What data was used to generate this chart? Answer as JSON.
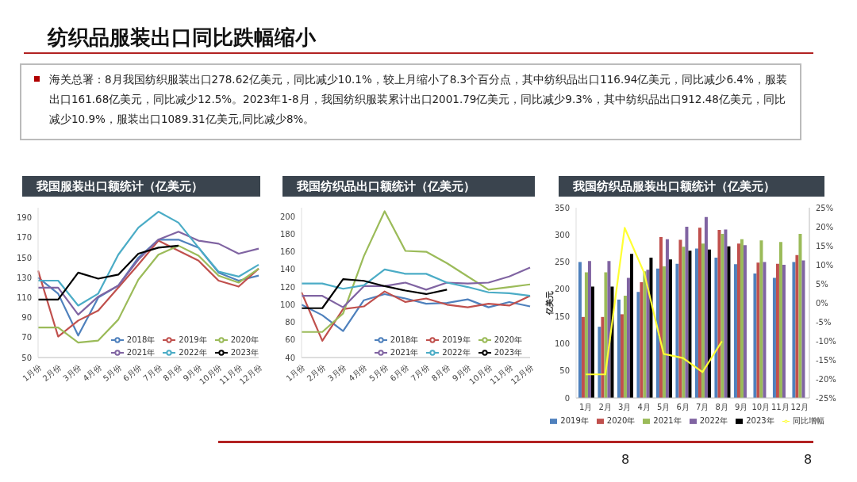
{
  "chart_data": [
    {
      "type": "other",
      "title": "纺织品服装出口同比跌幅缩小",
      "annotations": [
        "海关总署：8月我国纺织服装出口278.62亿美元，同比减少10.1%，较上月缩小了8.3个百分点，其中纺织品出口116.94亿美元，同比减少6.4%，服装出口161.68亿美元，同比减少12.5%。2023年1-8月，我国纺织服装累计出口2001.79亿美元，同比减少9.3%，其中纺织品出口912.48亿美元，同比减少10.9%，服装出口1089.31亿美元,同比减少8%。",
        "8",
        "8"
      ]
    },
    {
      "type": "line",
      "title": "我国服装出口额统计（亿美元）",
      "categories": [
        "1月份",
        "2月份",
        "3月份",
        "4月份",
        "5月份",
        "6月份",
        "7月份",
        "8月份",
        "9月份",
        "10月份",
        "11月份",
        "12月份"
      ],
      "ylim": [
        50,
        200
      ],
      "yticks": [
        50,
        70,
        90,
        110,
        130,
        150,
        170,
        190
      ],
      "legend": "bottom right",
      "series": [
        {
          "name": "2018年",
          "color": "#4f81bd",
          "values": [
            130,
            114,
            72,
            110,
            122,
            150,
            168,
            168,
            160,
            135,
            127,
            132
          ]
        },
        {
          "name": "2019年",
          "color": "#c0504d",
          "values": [
            137,
            71,
            87,
            97,
            120,
            143,
            167,
            157,
            147,
            127,
            121,
            139
          ]
        },
        {
          "name": "2020年",
          "color": "#9bbb59",
          "values": [
            80,
            80,
            65,
            67,
            88,
            128,
            153,
            162,
            152,
            132,
            125,
            139
          ]
        },
        {
          "name": "2021年",
          "color": "#8064a2",
          "values": [
            120,
            120,
            93,
            111,
            122,
            148,
            168,
            176,
            167,
            164,
            154,
            159
          ]
        },
        {
          "name": "2022年",
          "color": "#4bacc6",
          "values": [
            127,
            127,
            102,
            114,
            153,
            180,
            196,
            185,
            160,
            136,
            131,
            143
          ]
        },
        {
          "name": "2023年",
          "color": "#000000",
          "values": [
            108,
            108,
            135,
            129,
            133,
            154,
            160,
            162,
            null,
            null,
            null,
            null
          ]
        }
      ]
    },
    {
      "type": "line",
      "title": "我国纺织品出口额统计（亿美元）",
      "categories": [
        "1月份",
        "2月份",
        "3月份",
        "4月份",
        "5月份",
        "6月份",
        "7月份",
        "8月份",
        "9月份",
        "10月份",
        "11月份",
        "12月份"
      ],
      "ylim": [
        40,
        210
      ],
      "yticks": [
        40,
        60,
        80,
        100,
        120,
        140,
        160,
        180,
        200
      ],
      "legend": "bottom right",
      "series": [
        {
          "name": "2018年",
          "color": "#4f81bd",
          "values": [
            100,
            88,
            70,
            105,
            112,
            107,
            101,
            102,
            106,
            97,
            103,
            98
          ]
        },
        {
          "name": "2019年",
          "color": "#c0504d",
          "values": [
            114,
            59,
            95,
            98,
            115,
            103,
            107,
            100,
            97,
            101,
            99,
            110
          ]
        },
        {
          "name": "2020年",
          "color": "#9bbb59",
          "values": [
            69,
            69,
            90,
            155,
            206,
            161,
            160,
            147,
            132,
            117,
            120,
            123
          ]
        },
        {
          "name": "2021年",
          "color": "#8064a2",
          "values": [
            110,
            110,
            97,
            121,
            121,
            125,
            117,
            125,
            124,
            125,
            132,
            142
          ]
        },
        {
          "name": "2022年",
          "color": "#4bacc6",
          "values": [
            124,
            124,
            118,
            122,
            140,
            135,
            135,
            125,
            120,
            114,
            113,
            110
          ]
        },
        {
          "name": "2023年",
          "color": "#000000",
          "values": [
            96,
            96,
            129,
            127,
            121,
            116,
            112,
            117,
            null,
            null,
            null,
            null
          ]
        }
      ]
    },
    {
      "type": "bar",
      "title": "我国纺织品服装出口额统计（亿美元）",
      "ylabel": "亿美元",
      "categories": [
        "1月",
        "2月",
        "3月",
        "4月",
        "5月",
        "6月",
        "7月",
        "8月",
        "9月",
        "10月",
        "11月",
        "12月"
      ],
      "ylim": [
        0,
        350
      ],
      "yticks": [
        0,
        50,
        100,
        150,
        200,
        250,
        300,
        350
      ],
      "y2lim": [
        -25,
        25
      ],
      "y2ticks": [
        {
          "value": -25,
          "label": "-25%"
        },
        {
          "value": -20,
          "label": "-20%"
        },
        {
          "value": -15,
          "label": "-15%"
        },
        {
          "value": -10,
          "label": "-10%"
        },
        {
          "value": -5,
          "label": "-5%"
        },
        {
          "value": 0,
          "label": "0%"
        },
        {
          "value": 5,
          "label": "5%"
        },
        {
          "value": 10,
          "label": "10%"
        },
        {
          "value": 15,
          "label": "15%"
        },
        {
          "value": 20,
          "label": "20%"
        },
        {
          "value": 25,
          "label": "25%"
        }
      ],
      "legend": "bottom",
      "series": [
        {
          "name": "2019年",
          "color": "#4f81bd",
          "values": [
            250,
            131,
            181,
            195,
            238,
            247,
            275,
            258,
            246,
            229,
            221,
            250
          ]
        },
        {
          "name": "2020年",
          "color": "#c0504d",
          "values": [
            149,
            149,
            154,
            213,
            296,
            291,
            313,
            309,
            284,
            249,
            247,
            263
          ]
        },
        {
          "name": "2021年",
          "color": "#9bbb59",
          "values": [
            231,
            231,
            188,
            233,
            242,
            278,
            284,
            302,
            292,
            290,
            287,
            302
          ]
        },
        {
          "name": "2022年",
          "color": "#8064a2",
          "values": [
            252,
            252,
            221,
            236,
            292,
            315,
            333,
            310,
            281,
            250,
            245,
            253
          ]
        },
        {
          "name": "2023年",
          "color": "#000000",
          "values": [
            205,
            205,
            265,
            258,
            255,
            271,
            273,
            279,
            null,
            null,
            null,
            null
          ]
        },
        {
          "name": "同比增幅",
          "type": "line",
          "axis": "y2",
          "color": "#ffff33",
          "values": [
            -18.8,
            -18.8,
            19.7,
            7.9,
            -13.4,
            -14.5,
            -18.2,
            -10.1,
            null,
            null,
            null,
            null
          ]
        }
      ]
    }
  ]
}
